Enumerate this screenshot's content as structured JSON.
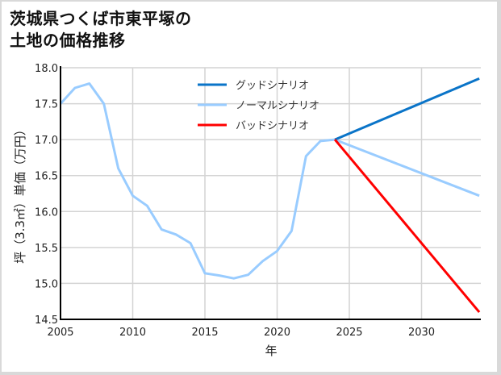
{
  "title_line1": "茨城県つくば市東平塚の",
  "title_line2": "土地の価格推移",
  "chart_data": {
    "type": "line",
    "title": "茨城県つくば市東平塚の土地の価格推移",
    "xlabel": "年",
    "ylabel": "坪（3.3㎡）単価（万円）",
    "xlim": [
      2005,
      2034
    ],
    "ylim": [
      14.5,
      18.0
    ],
    "xticks": [
      "2005",
      "2010",
      "2015",
      "2020",
      "2025",
      "2030"
    ],
    "yticks": [
      "14.5",
      "15.0",
      "15.5",
      "16.0",
      "16.5",
      "17.0",
      "17.5",
      "18.0"
    ],
    "grid": true,
    "legend_position": "upper center",
    "series": [
      {
        "name": "グッドシナリオ",
        "color": "#0a74c8",
        "x": [
          2024,
          2034
        ],
        "values": [
          17.0,
          17.85
        ]
      },
      {
        "name": "ノーマルシナリオ",
        "color": "#99ccff",
        "x": [
          2005,
          2006,
          2007,
          2008,
          2009,
          2010,
          2011,
          2012,
          2013,
          2014,
          2015,
          2016,
          2017,
          2018,
          2019,
          2020,
          2021,
          2022,
          2023,
          2024,
          2034
        ],
        "values": [
          17.5,
          17.72,
          17.78,
          17.5,
          16.6,
          16.22,
          16.08,
          15.75,
          15.68,
          15.56,
          15.14,
          15.11,
          15.07,
          15.12,
          15.31,
          15.45,
          15.73,
          16.77,
          16.98,
          17.0,
          16.22
        ]
      },
      {
        "name": "バッドシナリオ",
        "color": "#ff0000",
        "x": [
          2024,
          2034
        ],
        "values": [
          17.0,
          14.6
        ]
      }
    ]
  }
}
